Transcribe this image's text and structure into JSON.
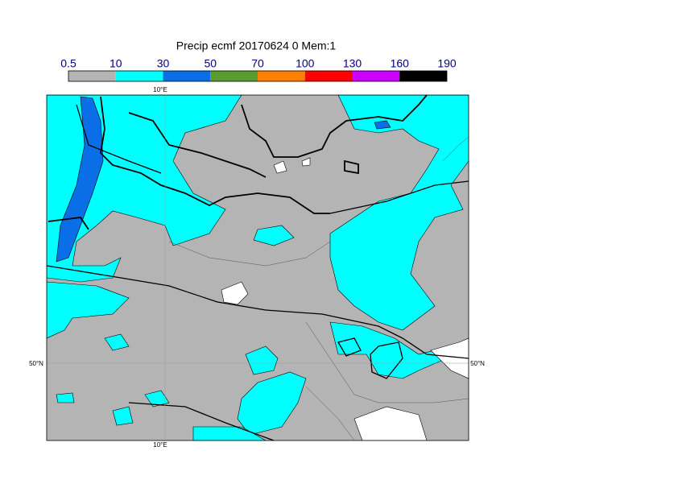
{
  "title": "Precip ecmf 20170624 0 Mem:1",
  "legend": {
    "ticks": [
      0.5,
      10,
      30,
      50,
      70,
      100,
      130,
      160,
      190
    ],
    "colors": [
      "#b4b4b4",
      "#00ffff",
      "#0a6ee6",
      "#5a9b32",
      "#ff8000",
      "#ff0000",
      "#cc00ff",
      "#000000"
    ]
  },
  "map": {
    "lon_label_top": "10°E",
    "lon_label_bottom": "10°E",
    "lat_label_left": "50°N",
    "lat_label_right": "50°N"
  }
}
